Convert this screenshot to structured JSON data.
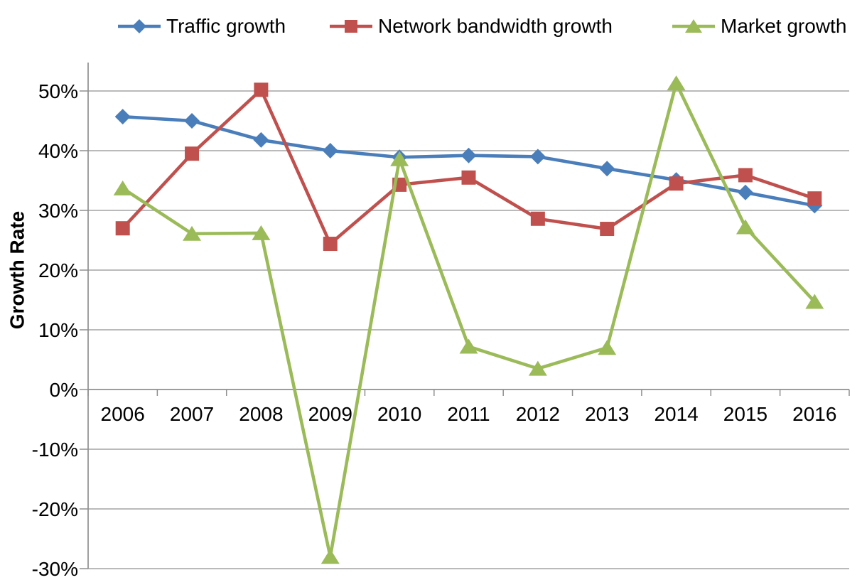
{
  "chart_data": {
    "type": "line",
    "title": "",
    "xlabel": "",
    "ylabel": "Growth Rate",
    "categories": [
      "2006",
      "2007",
      "2008",
      "2009",
      "2010",
      "2011",
      "2012",
      "2013",
      "2014",
      "2015",
      "2016"
    ],
    "series": [
      {
        "name": "Traffic growth",
        "marker": "diamond",
        "color": "#4A7EBB",
        "values": [
          45.7,
          45.0,
          41.8,
          40.0,
          38.9,
          39.2,
          39.0,
          37.0,
          35.1,
          33.0,
          30.8
        ]
      },
      {
        "name": "Network bandwidth growth",
        "marker": "square",
        "color": "#C0504D",
        "values": [
          27.0,
          39.5,
          50.2,
          24.4,
          34.3,
          35.5,
          28.6,
          26.9,
          34.5,
          35.9,
          32.0
        ]
      },
      {
        "name": "Market growth",
        "marker": "triangle",
        "color": "#9BBB59",
        "values": [
          33.7,
          26.1,
          26.2,
          -28.0,
          38.6,
          7.2,
          3.5,
          7.0,
          51.3,
          27.2,
          14.7
        ]
      }
    ],
    "y_axis": {
      "min": -30,
      "max": 50,
      "step": 10,
      "format": "percent"
    },
    "ylim": [
      -30,
      50
    ],
    "grid": true,
    "legend_position": "top",
    "colors": {
      "grid": "#A3A3A3",
      "axis": "#8F8F8F",
      "text": "#000000",
      "background": "#FFFFFF"
    }
  }
}
